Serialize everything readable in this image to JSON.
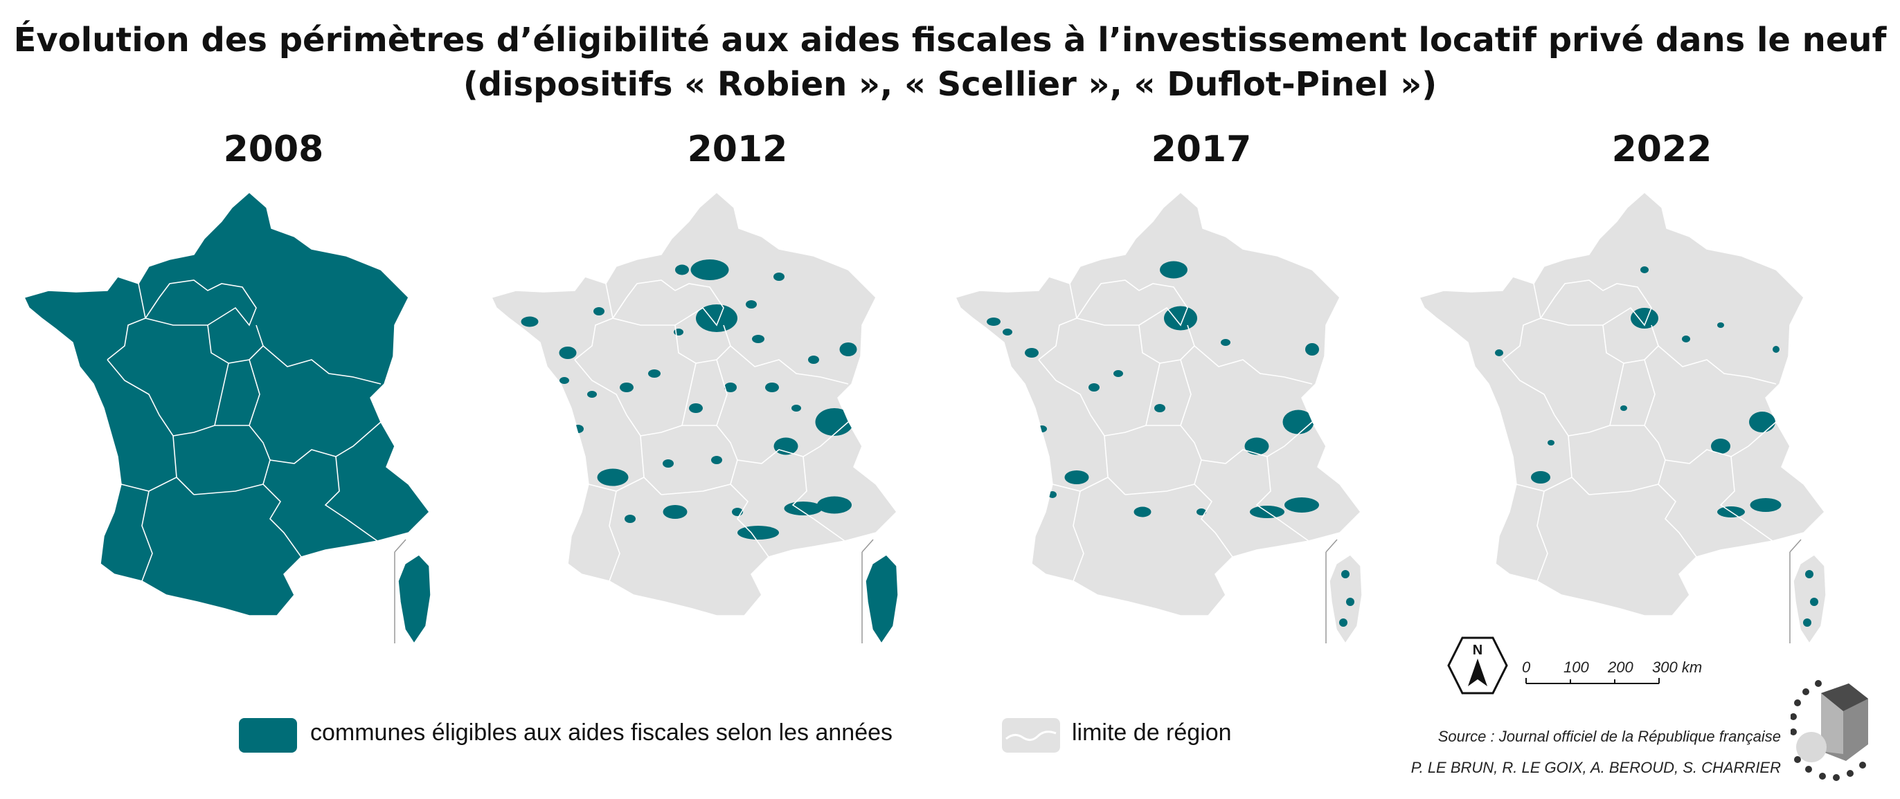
{
  "title": {
    "line1": "Évolution des périmètres d’éligibilité aux aides fiscales à l’investissement locatif privé dans le neuf",
    "line2": "(dispositifs « Robien », « Scellier », « Duflot-Pinel »)"
  },
  "panels": [
    {
      "year": "2008",
      "coverage": "full"
    },
    {
      "year": "2012",
      "coverage": "large"
    },
    {
      "year": "2017",
      "coverage": "medium"
    },
    {
      "year": "2022",
      "coverage": "small"
    }
  ],
  "legend": {
    "eligible_label": "communes éligibles aux aides fiscales selon les années",
    "region_label": "limite de région"
  },
  "colors": {
    "eligible": "#006d77",
    "region": "#e2e2e2",
    "border": "#ffffff"
  },
  "north_label": "N",
  "scale": {
    "labels": [
      "0",
      "100",
      "200",
      "300 km"
    ]
  },
  "source": "Source : Journal officiel de la République française",
  "authors": "P. LE BRUN, R. LE GOIX, A. BEROUD, S. CHARRIER"
}
